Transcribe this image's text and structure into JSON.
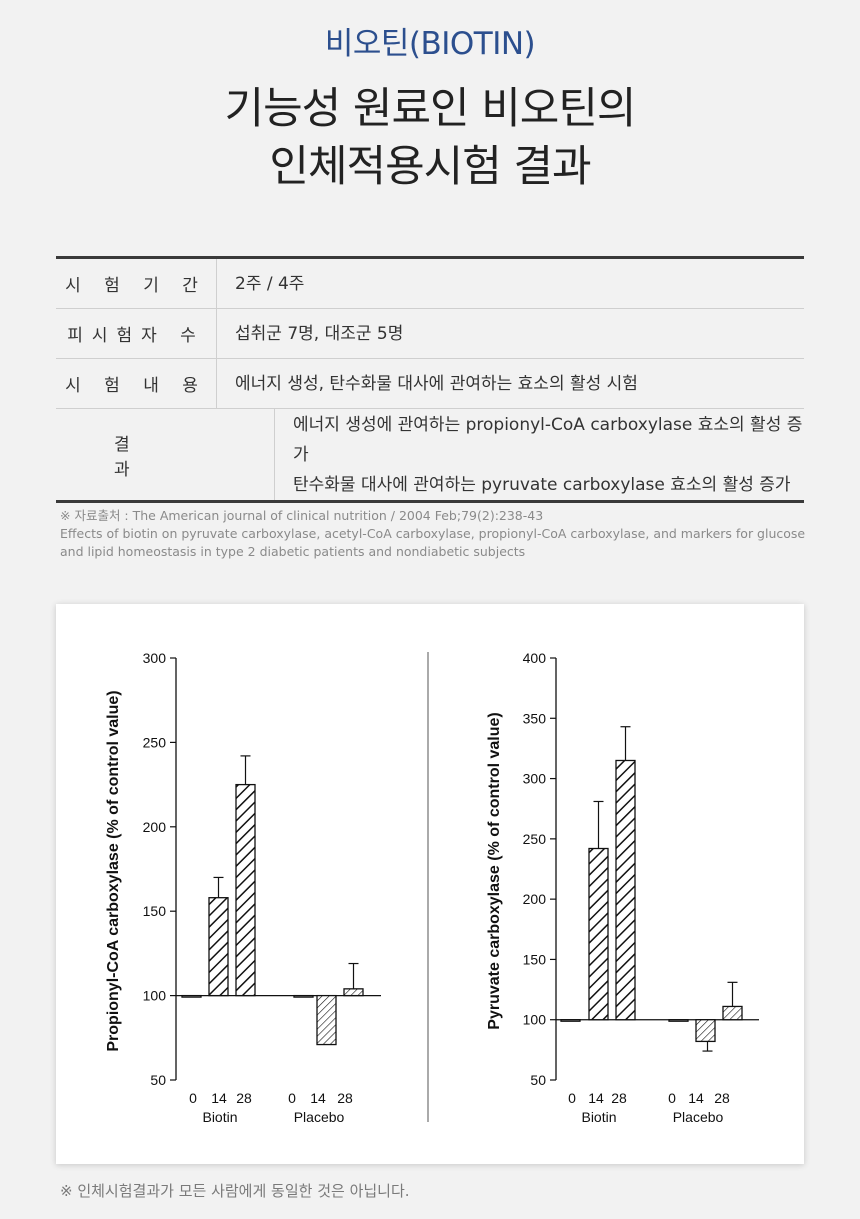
{
  "brand": "비오틴(BIOTIN)",
  "headline": {
    "line1": "기능성 원료인 비오틴의",
    "line2": "인체적용시험 결과"
  },
  "table": {
    "rows": [
      {
        "label": "시 험 기 간",
        "value": "2주 / 4주"
      },
      {
        "label": "피시험자 수",
        "value": "섭취군 7명, 대조군 5명"
      },
      {
        "label": "시 험 내 용",
        "value": "에너지 생성, 탄수화물 대사에 관여하는 효소의 활성 시험"
      },
      {
        "label": "결 과",
        "value": "에너지 생성에 관여하는 propionyl-CoA carboxylase 효소의 활성 증가",
        "value2": "탄수화물 대사에 관여하는 pyruvate carboxylase 효소의 활성 증가"
      }
    ]
  },
  "source": {
    "line1": "※ 자료출처 : The American journal of clinical nutrition / 2004 Feb;79(2):238-43",
    "line2": "Effects of biotin on pyruvate carboxylase, acetyl-CoA carboxylase, propionyl-CoA carboxylase, and markers for glucose and lipid homeostasis in type 2 diabetic patients and nondiabetic subjects"
  },
  "chart_data": [
    {
      "type": "bar",
      "ylabel": "Propionyl-CoA carboxylase (% of control value)",
      "ylim": [
        50,
        300
      ],
      "yticks": [
        50,
        100,
        150,
        200,
        250,
        300
      ],
      "baseline": 100,
      "groups": [
        {
          "name": "Biotin",
          "categories": [
            "0",
            "14",
            "28"
          ],
          "values": [
            100,
            158,
            225
          ],
          "error": [
            0,
            12,
            17
          ]
        },
        {
          "name": "Placebo",
          "categories": [
            "0",
            "14",
            "28"
          ],
          "values": [
            100,
            71,
            104
          ],
          "error": [
            0,
            0,
            15
          ]
        }
      ]
    },
    {
      "type": "bar",
      "ylabel": "Pyruvate carboxylase (% of control value)",
      "ylim": [
        50,
        400
      ],
      "yticks": [
        50,
        100,
        150,
        200,
        250,
        300,
        350,
        400
      ],
      "baseline": 100,
      "groups": [
        {
          "name": "Biotin",
          "categories": [
            "0",
            "14",
            "28"
          ],
          "values": [
            100,
            242,
            315
          ],
          "error": [
            0,
            39,
            28
          ]
        },
        {
          "name": "Placebo",
          "categories": [
            "0",
            "14",
            "28"
          ],
          "values": [
            100,
            82,
            111
          ],
          "error": [
            0,
            8,
            20
          ]
        }
      ]
    }
  ],
  "footnote": "※ 인체시험결과가 모든 사람에게 동일한 것은 아닙니다."
}
